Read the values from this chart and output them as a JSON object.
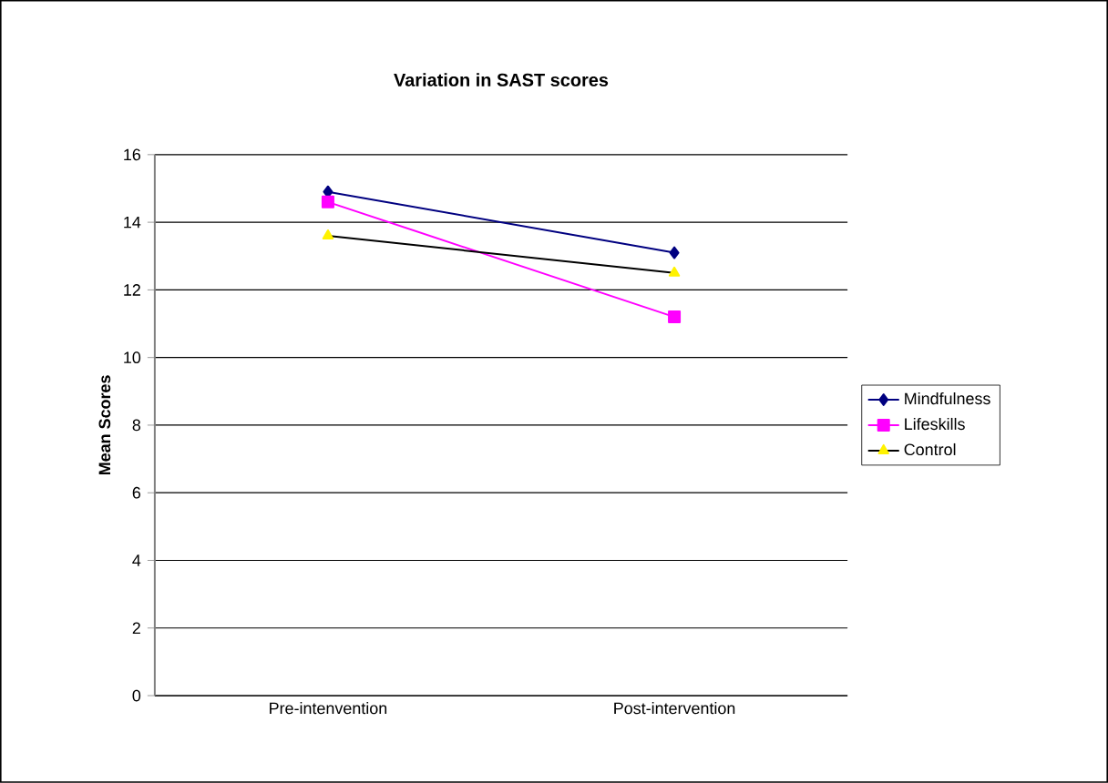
{
  "chart_data": {
    "type": "line",
    "title": "Variation in SAST scores",
    "ylabel": "Mean Scores",
    "categories": [
      "Pre-intenvention",
      "Post-intervention"
    ],
    "series": [
      {
        "name": "Mindfulness",
        "color": "#000080",
        "marker": "diamond",
        "values": [
          14.9,
          13.1
        ]
      },
      {
        "name": "Lifeskills",
        "color": "#ff00ff",
        "marker": "square",
        "values": [
          14.6,
          11.2
        ]
      },
      {
        "name": "Control",
        "color": "#000000",
        "marker": "triangle",
        "values": [
          13.6,
          12.5
        ]
      }
    ],
    "ylim": [
      0,
      16
    ],
    "yticks": [
      0,
      2,
      4,
      6,
      8,
      10,
      12,
      14,
      16
    ],
    "grid": "y",
    "legend": "right"
  }
}
